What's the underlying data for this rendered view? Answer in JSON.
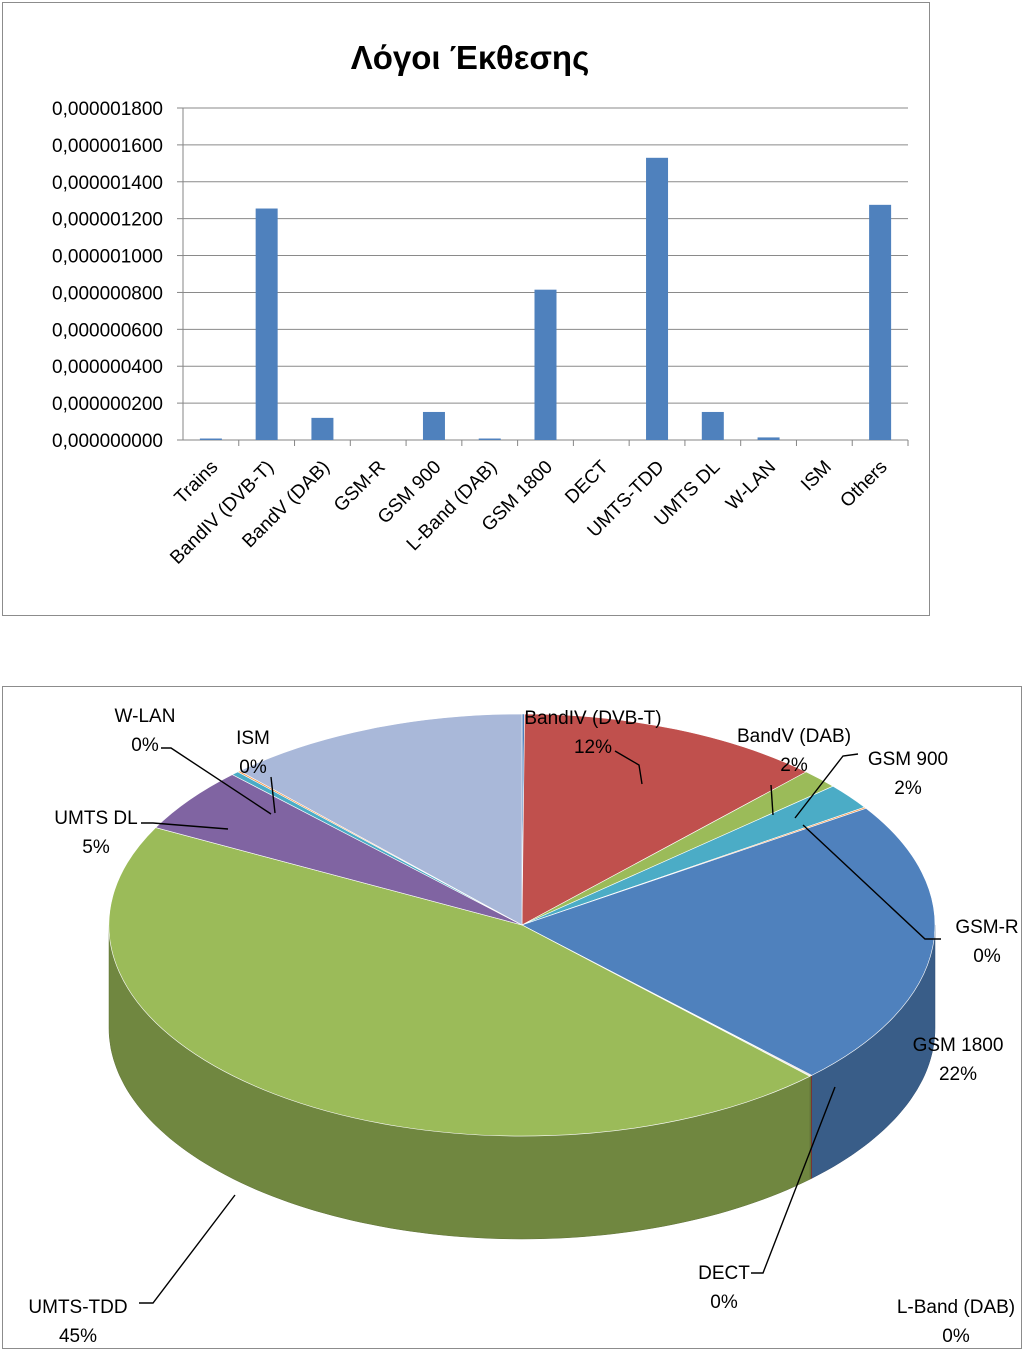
{
  "chart_data": [
    {
      "type": "bar",
      "title": "Λόγοι Έκθεσης",
      "categories": [
        "Trains",
        "BandIV (DVB-T)",
        "BandV (DAB)",
        "GSM-R",
        "GSM 900",
        "L-Band (DAB)",
        "GSM 1800",
        "DECT",
        "UMTS-TDD",
        "UMTS DL",
        "W-LAN",
        "ISM",
        "Others"
      ],
      "values": [
        8e-09,
        1.255e-06,
        1.2e-07,
        0.0,
        1.52e-07,
        8e-09,
        8.15e-07,
        0.0,
        1.53e-06,
        1.52e-07,
        1.4e-08,
        0.0,
        1.275e-06
      ],
      "ylim": [
        0,
        1.8e-06
      ],
      "yticks": [
        0,
        2e-07,
        4e-07,
        6e-07,
        8e-07,
        1e-06,
        1.2e-06,
        1.4e-06,
        1.6e-06,
        1.8e-06
      ],
      "ytick_labels": [
        "0,000000000",
        "0,000000200",
        "0,000000400",
        "0,000000600",
        "0,000000800",
        "0,000001000",
        "0,000001200",
        "0,000001400",
        "0,000001600",
        "0,000001800"
      ],
      "xlabel": "",
      "ylabel": "",
      "grid": true,
      "bar_color": "#4f81bd"
    },
    {
      "type": "pie",
      "style": "3d",
      "slices": [
        {
          "label": "Trains",
          "value": 0.1,
          "percent_label": "",
          "color": "#4f81bd"
        },
        {
          "label": "BandIV (DVB-T)",
          "value": 12,
          "percent_label": "12%",
          "color": "#c0504d"
        },
        {
          "label": "BandV (DAB)",
          "value": 1.5,
          "percent_label": "2%",
          "color": "#9bbb59"
        },
        {
          "label": "GSM 900",
          "value": 2,
          "percent_label": "2%",
          "color": "#4bacc6"
        },
        {
          "label": "GSM-R",
          "value": 0.1,
          "percent_label": "0%",
          "color": "#f79646"
        },
        {
          "label": "GSM 1800",
          "value": 22,
          "percent_label": "22%",
          "color": "#4f81bd"
        },
        {
          "label": "L-Band (DAB)",
          "value": 0.05,
          "percent_label": "0%",
          "color": "#c0504d"
        },
        {
          "label": "DECT",
          "value": 0.05,
          "percent_label": "0%",
          "color": "#9bbb59"
        },
        {
          "label": "UMTS-TDD",
          "value": 45,
          "percent_label": "45%",
          "color": "#9bbb59"
        },
        {
          "label": "UMTS DL",
          "value": 5,
          "percent_label": "5%",
          "color": "#8064a2"
        },
        {
          "label": "W-LAN",
          "value": 0.3,
          "percent_label": "0%",
          "color": "#4bacc6"
        },
        {
          "label": "ISM",
          "value": 0.1,
          "percent_label": "0%",
          "color": "#f79646"
        },
        {
          "label": "Others",
          "value": 12,
          "percent_label": "",
          "color": "#a9b8d9"
        }
      ],
      "legend": "none"
    }
  ]
}
